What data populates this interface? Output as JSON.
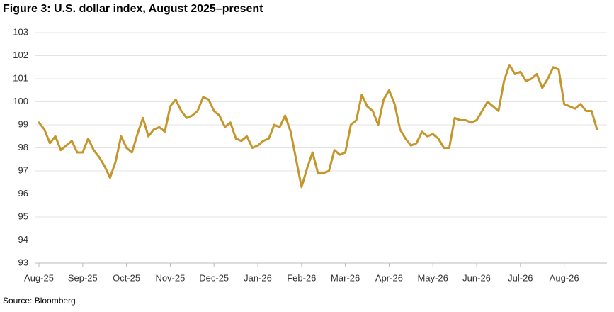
{
  "chart_data": {
    "type": "line",
    "title": "Figure 3: U.S. dollar index, August 2025–present",
    "source": "Source: Bloomberg",
    "categories": [
      "Aug-25",
      null,
      null,
      null,
      null,
      null,
      null,
      null,
      "Sep-25",
      null,
      null,
      null,
      null,
      null,
      null,
      null,
      "Oct-25",
      null,
      null,
      null,
      null,
      null,
      null,
      null,
      "Nov-25",
      null,
      null,
      null,
      null,
      null,
      null,
      null,
      "Dec-25",
      null,
      null,
      null,
      null,
      null,
      null,
      null,
      "Jan-26",
      null,
      null,
      null,
      null,
      null,
      null,
      null,
      "Feb-26",
      null,
      null,
      null,
      null,
      null,
      null,
      null,
      "Mar-26",
      null,
      null,
      null,
      null,
      null,
      null,
      null,
      "Apr-26",
      null,
      null,
      null,
      null,
      null,
      null,
      null,
      "May-26",
      null,
      null,
      null,
      null,
      null,
      null,
      null,
      "Jun-26",
      null,
      null,
      null,
      null,
      null,
      null,
      null,
      "Jul-26",
      null,
      null,
      null,
      null,
      null,
      null,
      null,
      "Aug-26",
      null,
      null,
      null,
      null,
      null,
      null
    ],
    "values": [
      99.1,
      98.8,
      98.2,
      98.5,
      97.9,
      98.1,
      98.3,
      97.8,
      97.8,
      98.4,
      97.9,
      97.6,
      97.2,
      96.7,
      97.4,
      98.5,
      98.0,
      97.8,
      98.6,
      99.3,
      98.5,
      98.8,
      98.9,
      98.7,
      99.8,
      100.1,
      99.6,
      99.3,
      99.4,
      99.6,
      100.2,
      100.1,
      99.6,
      99.4,
      98.9,
      99.1,
      98.4,
      98.3,
      98.5,
      98.0,
      98.1,
      98.3,
      98.4,
      99.0,
      98.9,
      99.4,
      98.7,
      97.5,
      96.3,
      97.1,
      97.8,
      96.9,
      96.9,
      97.0,
      97.9,
      97.7,
      97.8,
      99.0,
      99.2,
      100.3,
      99.8,
      99.6,
      99.0,
      100.1,
      100.5,
      99.9,
      98.8,
      98.4,
      98.1,
      98.2,
      98.7,
      98.5,
      98.6,
      98.4,
      98.0,
      98.0,
      99.3,
      99.2,
      99.2,
      99.1,
      99.2,
      99.6,
      100.0,
      99.8,
      99.6,
      100.9,
      101.6,
      101.2,
      101.3,
      100.9,
      101.0,
      101.2,
      100.6,
      101.0,
      101.5,
      101.4,
      99.9,
      99.8,
      99.7,
      99.9,
      99.6,
      99.6,
      98.8
    ],
    "color": "#c4962c",
    "ylim": [
      93,
      103
    ],
    "yticks": [
      93,
      94,
      95,
      96,
      97,
      98,
      99,
      100,
      101,
      102,
      103
    ],
    "grid": true
  }
}
